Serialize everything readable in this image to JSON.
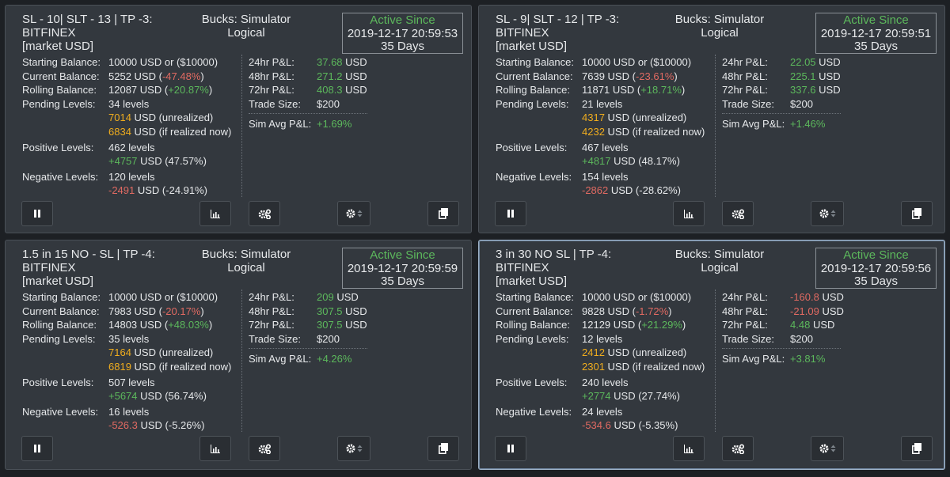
{
  "labels": {
    "account": "Bucks: Simulator",
    "logical": "Logical",
    "active_since": "Active Since",
    "starting_balance": "Starting Balance:",
    "current_balance": "Current Balance:",
    "rolling_balance": "Rolling Balance:",
    "pending_levels": "Pending Levels:",
    "positive_levels": "Positive Levels:",
    "negative_levels": "Negative Levels:",
    "pnl_24": "24hr P&L:",
    "pnl_48": "48hr P&L:",
    "pnl_72": "72hr P&L:",
    "trade_size": "Trade Size:",
    "sim_avg": "Sim Avg P&L:",
    "usd": "USD"
  },
  "icons": [
    "pause-icon",
    "chart-icon",
    "gears-icon",
    "settings-gear-icon",
    "copy-icon"
  ],
  "colors": {
    "positive": "#5cb85c",
    "negative": "#e16a62",
    "pending": "#f0ad1e",
    "card_bg": "#33383e"
  },
  "cards": [
    {
      "title": "SL - 10| SLT - 13 | TP -3:\nBITFINEX\n[market USD]",
      "since_date": "2019-12-17 20:59:53",
      "days": "35 Days",
      "starting_value": "10000",
      "starting_suffix": "USD or ($10000)",
      "current_value": "5252",
      "current_pct": "-47.48%",
      "rolling_value": "12087",
      "rolling_pct": "+20.87%",
      "pending_levels": "34 levels",
      "unrealized_value": "7014",
      "unrealized_suffix": "USD (unrealized)",
      "realized_value": "6834",
      "realized_suffix": "USD (if realized now)",
      "positive_levels": "462 levels",
      "positive_value": "+4757",
      "positive_suffix": "USD (47.57%)",
      "negative_levels": "120 levels",
      "negative_value": "-2491",
      "negative_suffix": "USD (-24.91%)",
      "pnl24": "37.68",
      "pnl48": "271.2",
      "pnl72": "408.3",
      "trade_size": "$200",
      "sim_avg": "+1.69%"
    },
    {
      "title": "SL - 9| SLT - 12 | TP -3:\nBITFINEX\n[market USD]",
      "since_date": "2019-12-17 20:59:51",
      "days": "35 Days",
      "starting_value": "10000",
      "starting_suffix": "USD or ($10000)",
      "current_value": "7639",
      "current_pct": "-23.61%",
      "rolling_value": "11871",
      "rolling_pct": "+18.71%",
      "pending_levels": "21 levels",
      "unrealized_value": "4317",
      "unrealized_suffix": "USD (unrealized)",
      "realized_value": "4232",
      "realized_suffix": "USD (if realized now)",
      "positive_levels": "467 levels",
      "positive_value": "+4817",
      "positive_suffix": "USD (48.17%)",
      "negative_levels": "154 levels",
      "negative_value": "-2862",
      "negative_suffix": "USD (-28.62%)",
      "pnl24": "22.05",
      "pnl48": "225.1",
      "pnl72": "337.6",
      "trade_size": "$200",
      "sim_avg": "+1.46%"
    },
    {
      "title": "1.5 in 15 NO - SL | TP -4:\nBITFINEX\n[market USD]",
      "since_date": "2019-12-17 20:59:59",
      "days": "35 Days",
      "starting_value": "10000",
      "starting_suffix": "USD or ($10000)",
      "current_value": "7983",
      "current_pct": "-20.17%",
      "rolling_value": "14803",
      "rolling_pct": "+48.03%",
      "pending_levels": "35 levels",
      "unrealized_value": "7164",
      "unrealized_suffix": "USD (unrealized)",
      "realized_value": "6819",
      "realized_suffix": "USD (if realized now)",
      "positive_levels": "507 levels",
      "positive_value": "+5674",
      "positive_suffix": "USD (56.74%)",
      "negative_levels": "16 levels",
      "negative_value": "-526.3",
      "negative_suffix": "USD (-5.26%)",
      "pnl24": "209",
      "pnl48": "307.5",
      "pnl72": "307.5",
      "trade_size": "$200",
      "sim_avg": "+4.26%"
    },
    {
      "title": "3 in 30 NO SL | TP -4:\nBITFINEX\n[market USD]",
      "since_date": "2019-12-17 20:59:56",
      "days": "35 Days",
      "starting_value": "10000",
      "starting_suffix": "USD or ($10000)",
      "current_value": "9828",
      "current_pct": "-1.72%",
      "rolling_value": "12129",
      "rolling_pct": "+21.29%",
      "pending_levels": "12 levels",
      "unrealized_value": "2412",
      "unrealized_suffix": "USD (unrealized)",
      "realized_value": "2301",
      "realized_suffix": "USD (if realized now)",
      "positive_levels": "240 levels",
      "positive_value": "+2774",
      "positive_suffix": "USD (27.74%)",
      "negative_levels": "24 levels",
      "negative_value": "-534.6",
      "negative_suffix": "USD (-5.35%)",
      "pnl24": "-160.8",
      "pnl48": "-21.09",
      "pnl72": "4.48",
      "trade_size": "$200",
      "sim_avg": "+3.81%"
    }
  ]
}
